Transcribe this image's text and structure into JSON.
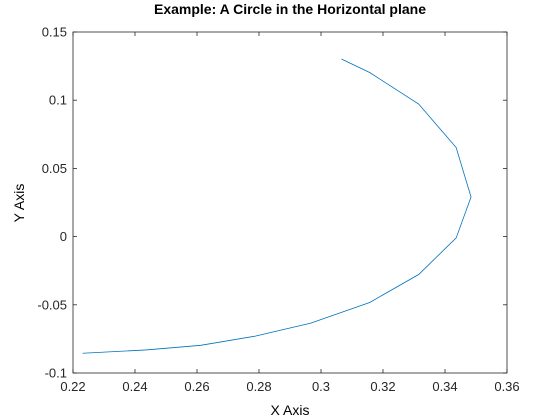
{
  "chart_data": {
    "type": "line",
    "title": "Example: A Circle in the Horizontal plane",
    "xlabel": "X Axis",
    "ylabel": "Y Axis",
    "xlim": [
      0.22,
      0.36
    ],
    "ylim": [
      -0.1,
      0.15
    ],
    "xticks": [
      0.22,
      0.24,
      0.26,
      0.28,
      0.3,
      0.32,
      0.34,
      0.36
    ],
    "xtick_labels": [
      "0.22",
      "0.24",
      "0.26",
      "0.28",
      "0.3",
      "0.32",
      "0.34",
      "0.36"
    ],
    "yticks": [
      -0.1,
      -0.05,
      0,
      0.05,
      0.1,
      0.15
    ],
    "ytick_labels": [
      "-0.1",
      "-0.05",
      "0",
      "0.05",
      "0.1",
      "0.15"
    ],
    "grid": false,
    "series": [
      {
        "color": "#0072bd",
        "x": [
          0.3066,
          0.3157,
          0.3315,
          0.3436,
          0.3484,
          0.3436,
          0.3315,
          0.3157,
          0.2967,
          0.2788,
          0.2612,
          0.2436,
          0.2231
        ],
        "y": [
          0.1302,
          0.1203,
          0.0972,
          0.0653,
          0.029,
          -0.001,
          -0.0278,
          -0.0483,
          -0.0634,
          -0.073,
          -0.0797,
          -0.0831,
          -0.0855
        ]
      }
    ]
  }
}
